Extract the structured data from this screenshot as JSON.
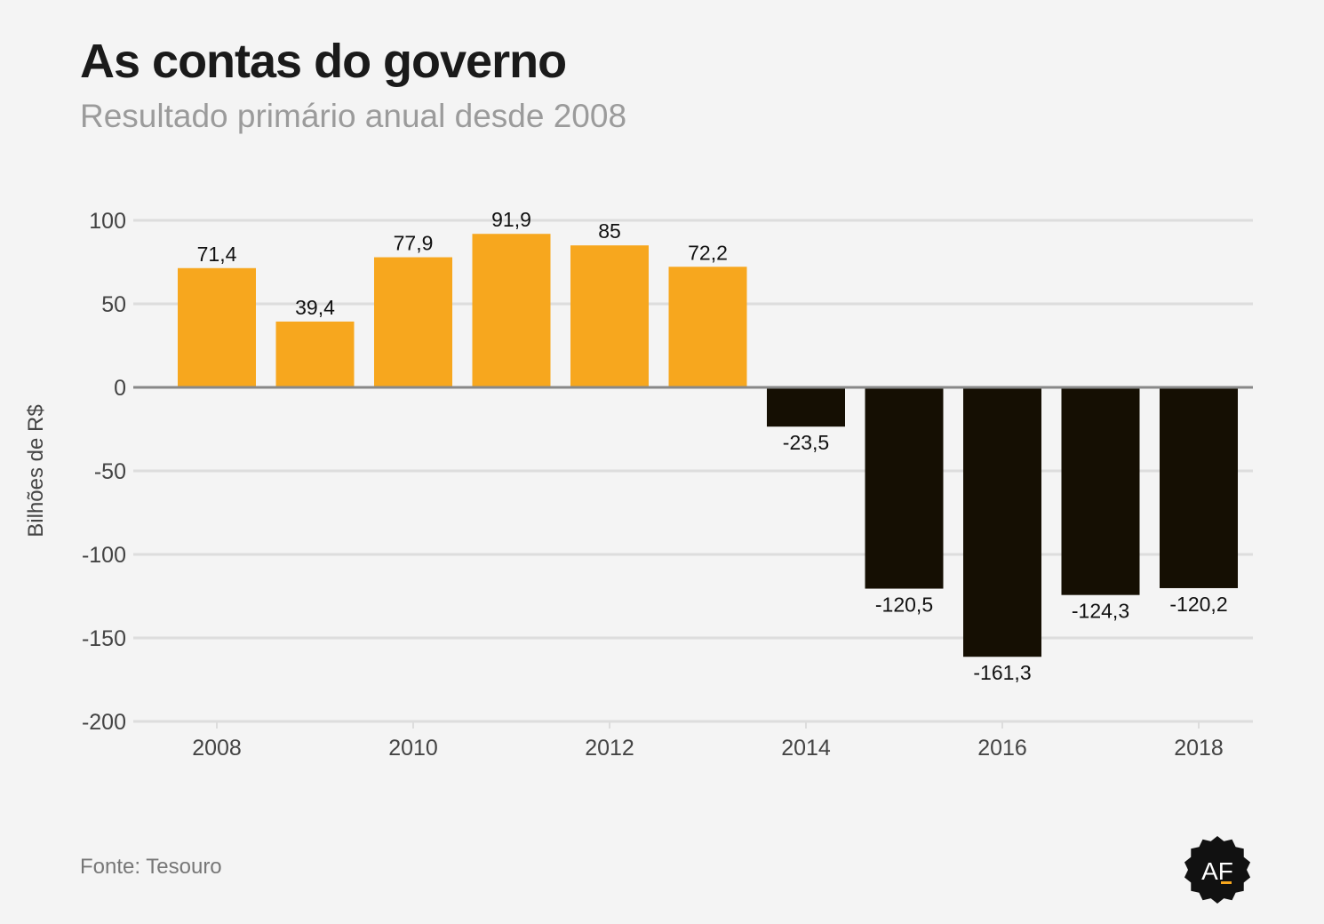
{
  "title": "As contas do governo",
  "subtitle": "Resultado primário anual desde 2008",
  "source": "Fonte: Tesouro",
  "logo": {
    "text": "AF",
    "icon": "af-seal-logo"
  },
  "colors": {
    "positive": "#f7a71e",
    "negative": "#150f03",
    "grid": "#dddddd",
    "zero_line": "#888888",
    "tick_text": "#444444",
    "label_text": "#111111"
  },
  "chart_data": {
    "type": "bar",
    "title": "",
    "xlabel": "",
    "ylabel": "Bilhões de R$",
    "ylim": [
      -200,
      100
    ],
    "yticks": [
      100,
      50,
      0,
      -50,
      -100,
      -150,
      -200
    ],
    "xticks": [
      "2008",
      "2010",
      "2012",
      "2014",
      "2016",
      "2018"
    ],
    "categories": [
      "2008",
      "2009",
      "2010",
      "2011",
      "2012",
      "2013",
      "2014",
      "2015",
      "2016",
      "2017",
      "2018"
    ],
    "values": [
      71.4,
      39.4,
      77.9,
      91.9,
      85,
      72.2,
      -23.5,
      -120.5,
      -161.3,
      -124.3,
      -120.2
    ],
    "data_labels": [
      "71,4",
      "39,4",
      "77,9",
      "91,9",
      "85",
      "72,2",
      "-23,5",
      "-120,5",
      "-161,3",
      "-124,3",
      "-120,2"
    ],
    "grid": true,
    "legend": "none"
  }
}
